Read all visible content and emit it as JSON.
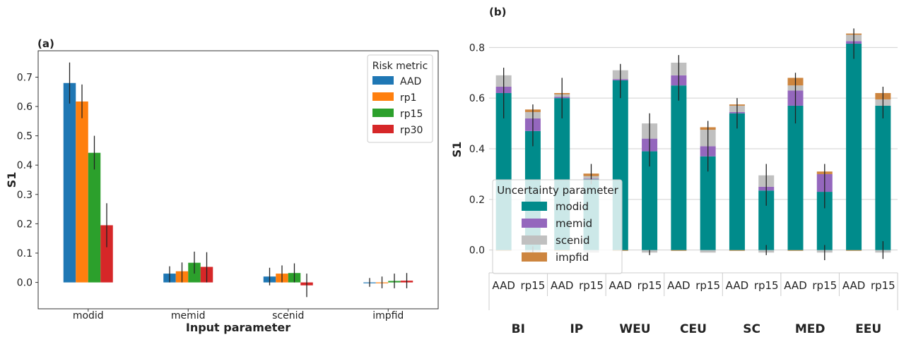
{
  "panel_a": {
    "label": "(a)",
    "legend_title": "Risk metric"
  },
  "panel_b": {
    "label": "(b)",
    "legend_title": "Uncertainty parameter"
  },
  "chart_data": [
    {
      "type": "bar",
      "title": "(a)",
      "xlabel": "Input parameter",
      "ylabel": "S1",
      "ylim": [
        -0.09,
        0.79
      ],
      "yticks": [
        "0.0",
        "0.1",
        "0.2",
        "0.3",
        "0.4",
        "0.5",
        "0.6",
        "0.7"
      ],
      "categories": [
        "modid",
        "memid",
        "scenid",
        "impfid"
      ],
      "legend": {
        "title": "Risk metric",
        "position": "top-right"
      },
      "series": [
        {
          "name": "AAD",
          "color": "#1f77b4",
          "values": [
            0.68,
            0.03,
            0.02,
            0.0
          ],
          "err_low": [
            0.61,
            0.0,
            -0.01,
            -0.015
          ],
          "err_high": [
            0.75,
            0.055,
            0.05,
            0.015
          ]
        },
        {
          "name": "rp1",
          "color": "#ff7f0e",
          "values": [
            0.617,
            0.038,
            0.03,
            0.0
          ],
          "err_low": [
            0.56,
            0.0,
            0.0,
            -0.02
          ],
          "err_high": [
            0.675,
            0.068,
            0.058,
            0.02
          ]
        },
        {
          "name": "rp15",
          "color": "#2ca02c",
          "values": [
            0.442,
            0.067,
            0.032,
            0.005
          ],
          "err_low": [
            0.385,
            0.03,
            0.0,
            -0.02
          ],
          "err_high": [
            0.5,
            0.105,
            0.065,
            0.03
          ]
        },
        {
          "name": "rp30",
          "color": "#d62728",
          "values": [
            0.195,
            0.053,
            -0.01,
            0.006
          ],
          "err_low": [
            0.12,
            0.0,
            -0.05,
            -0.02
          ],
          "err_high": [
            0.27,
            0.103,
            0.03,
            0.032
          ]
        }
      ]
    },
    {
      "type": "bar",
      "title": "(b)",
      "ylabel": "S1",
      "ylim": [
        -0.09,
        0.89
      ],
      "yticks": [
        "0.0",
        "0.2",
        "0.4",
        "0.6",
        "0.8"
      ],
      "stacked": true,
      "grid": true,
      "categories": [
        "AAD",
        "rp15",
        "AAD",
        "rp15",
        "AAD",
        "rp15",
        "AAD",
        "rp15",
        "AAD",
        "rp15",
        "AAD",
        "rp15",
        "AAD",
        "rp15"
      ],
      "groups": [
        "BI",
        "IP",
        "WEU",
        "CEU",
        "SC",
        "MED",
        "EEU"
      ],
      "legend": {
        "title": "Uncertainty parameter",
        "position": "lower-left"
      },
      "series": [
        {
          "name": "modid",
          "color": "#008b8b",
          "values": [
            0.62,
            0.47,
            0.6,
            0.28,
            0.67,
            0.39,
            0.65,
            0.37,
            0.54,
            0.235,
            0.57,
            0.23,
            0.815,
            0.57
          ]
        },
        {
          "name": "memid",
          "color": "#9467bd",
          "values": [
            0.025,
            0.05,
            0.005,
            0.002,
            0.005,
            0.05,
            0.04,
            0.04,
            0.005,
            0.015,
            0.06,
            0.07,
            0.01,
            0.0
          ]
        },
        {
          "name": "scenid",
          "color": "#c0c0c0",
          "values": [
            0.045,
            0.025,
            0.01,
            0.01,
            0.035,
            0.06,
            0.05,
            0.065,
            0.025,
            0.045,
            0.02,
            0.0,
            0.025,
            0.025
          ]
        },
        {
          "name": "impfid",
          "color": "#cd853f",
          "values": [
            0.0,
            0.01,
            0.005,
            0.01,
            0.0,
            0.0,
            0.0,
            0.01,
            0.005,
            0.0,
            0.03,
            0.01,
            0.005,
            0.025
          ]
        }
      ],
      "negative_offsets": {
        "AAD": -0.003,
        "rp15": -0.01
      },
      "error_bars": {
        "low": [
          0.52,
          0.41,
          0.52,
          0.26,
          0.6,
          0.33,
          0.59,
          0.31,
          0.48,
          0.175,
          0.5,
          0.165,
          0.755,
          0.52
        ],
        "high": [
          0.72,
          0.575,
          0.68,
          0.34,
          0.735,
          0.54,
          0.77,
          0.51,
          0.6,
          0.34,
          0.7,
          0.34,
          0.875,
          0.645
        ],
        "base_low": [
          null,
          -0.015,
          null,
          null,
          null,
          -0.02,
          null,
          null,
          null,
          -0.02,
          null,
          -0.04,
          null,
          -0.035
        ],
        "base_high": [
          null,
          0.015,
          null,
          null,
          null,
          0.0,
          null,
          null,
          null,
          0.02,
          null,
          0.02,
          null,
          0.035
        ]
      }
    }
  ]
}
